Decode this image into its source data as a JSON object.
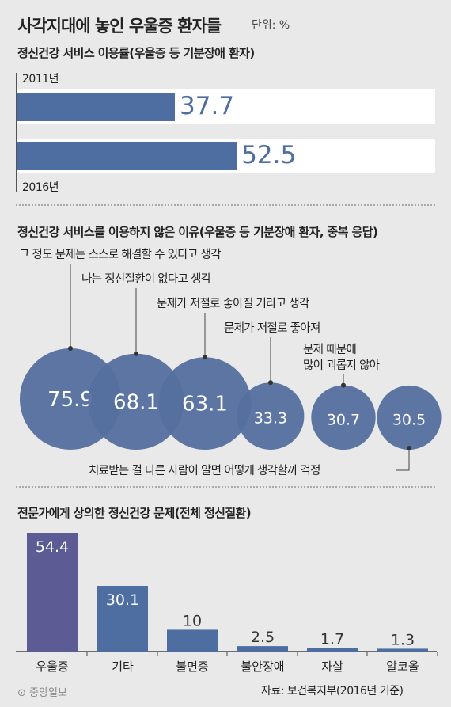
{
  "header": {
    "title": "사각지대에 놓인 우울증 환자들",
    "unit": "단위: %"
  },
  "section1": {
    "title": "정신건강 서비스 이용률(우울증 등 기분장애 환자)",
    "years": [
      "2011년",
      "2016년"
    ],
    "values": [
      "37.7",
      "52.5"
    ]
  },
  "section2": {
    "title": "정신건강 서비스를 이용하지 않은 이유(우울증 등 기분장애 환자, 중복 응답)",
    "reasons": [
      "그 정도 문제는 스스로 해결할 수 있다고 생각",
      "나는 정신질환이 없다고 생각",
      "문제가 저절로 좋아질 거라고 생각",
      "문제가 저절로 좋아져",
      "문제 때문에\n많이 괴롭지 않아",
      "치료받는 걸 다른 사람이 알면 어떻게 생각할까 걱정"
    ],
    "values": [
      "75.9",
      "68.1",
      "63.1",
      "33.3",
      "30.7",
      "30.5"
    ]
  },
  "section3": {
    "title": "전문가에게 상의한 정신건강 문제(전체 정신질환)"
  },
  "footer": {
    "logo": "중앙일보",
    "source": "자료: 보건복지부(2016년 기준)"
  },
  "colors": {
    "bar": "#4e6ea2",
    "bar_first": "#5d5b93",
    "bubble": "#546f9f",
    "background": "#e9e9e9"
  },
  "chart_data": [
    {
      "type": "bar",
      "orientation": "horizontal",
      "title": "정신건강 서비스 이용률(우울증 등 기분장애 환자)",
      "categories": [
        "2011년",
        "2016년"
      ],
      "values": [
        37.7,
        52.5
      ],
      "xlim": [
        0,
        100
      ]
    },
    {
      "type": "scatter",
      "title": "정신건강 서비스를 이용하지 않은 이유(우울증 등 기분장애 환자, 중복 응답)",
      "categories": [
        "그 정도 문제는 스스로 해결할 수 있다고 생각",
        "나는 정신질환이 없다고 생각",
        "문제가 저절로 좋아질 거라고 생각",
        "문제가 저절로 좋아져",
        "문제 때문에 많이 괴롭지 않아",
        "치료받는 걸 다른 사람이 알면 어떻게 생각할까 걱정"
      ],
      "values": [
        75.9,
        68.1,
        63.1,
        33.3,
        30.7,
        30.5
      ]
    },
    {
      "type": "bar",
      "title": "전문가에게 상의한 정신건강 문제(전체 정신질환)",
      "categories": [
        "우울증",
        "기타",
        "불면증",
        "불안장애",
        "자살",
        "알코올"
      ],
      "values": [
        54.4,
        30.1,
        10,
        2.5,
        1.7,
        1.3
      ],
      "labels": [
        "54.4",
        "30.1",
        "10",
        "2.5",
        "1.7",
        "1.3"
      ]
    }
  ]
}
